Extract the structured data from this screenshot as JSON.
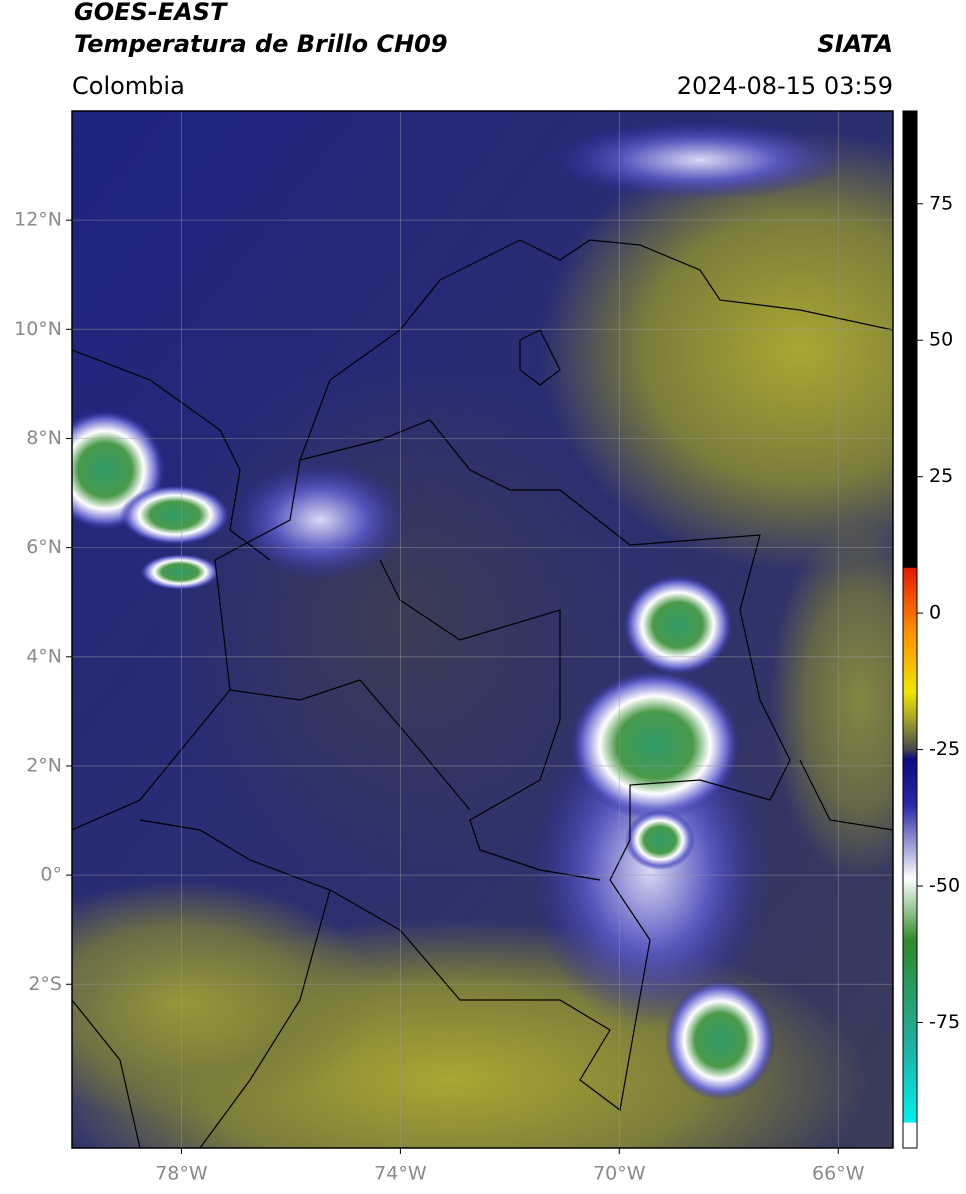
{
  "header": {
    "title_line1": "GOES-EAST",
    "title_line2": "Temperatura de Brillo CH09",
    "source": "SIATA",
    "region": "Colombia",
    "timestamp": "2024-08-15 03:59"
  },
  "map": {
    "xlim": [
      -80,
      -65
    ],
    "ylim": [
      -5,
      14
    ],
    "xticks": [
      {
        "value": -78,
        "label": "78°W"
      },
      {
        "value": -74,
        "label": "74°W"
      },
      {
        "value": -70,
        "label": "70°W"
      },
      {
        "value": -66,
        "label": "66°W"
      }
    ],
    "yticks": [
      {
        "value": 12,
        "label": "12°N"
      },
      {
        "value": 10,
        "label": "10°N"
      },
      {
        "value": 8,
        "label": "8°N"
      },
      {
        "value": 6,
        "label": "6°N"
      },
      {
        "value": 4,
        "label": "4°N"
      },
      {
        "value": 2,
        "label": "2°N"
      },
      {
        "value": 0,
        "label": "0°"
      },
      {
        "value": -2,
        "label": "2°S"
      }
    ]
  },
  "colorbar": {
    "lim": [
      -98,
      92
    ],
    "ticks": [
      75,
      50,
      25,
      0,
      -25,
      -50,
      -75
    ]
  }
}
